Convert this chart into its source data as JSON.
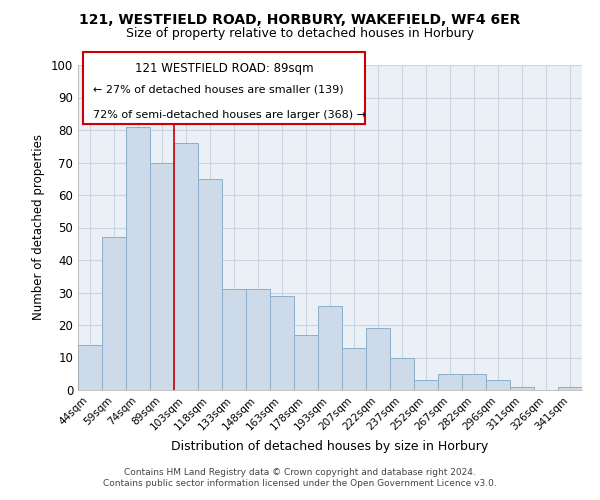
{
  "title1": "121, WESTFIELD ROAD, HORBURY, WAKEFIELD, WF4 6ER",
  "title2": "Size of property relative to detached houses in Horbury",
  "xlabel": "Distribution of detached houses by size in Horbury",
  "ylabel": "Number of detached properties",
  "bar_labels": [
    "44sqm",
    "59sqm",
    "74sqm",
    "89sqm",
    "103sqm",
    "118sqm",
    "133sqm",
    "148sqm",
    "163sqm",
    "178sqm",
    "193sqm",
    "207sqm",
    "222sqm",
    "237sqm",
    "252sqm",
    "267sqm",
    "282sqm",
    "296sqm",
    "311sqm",
    "326sqm",
    "341sqm"
  ],
  "bar_values": [
    14,
    47,
    81,
    70,
    76,
    65,
    31,
    31,
    29,
    17,
    26,
    13,
    19,
    10,
    3,
    5,
    5,
    3,
    1,
    0,
    1
  ],
  "bar_color": "#ccdaea",
  "bar_edge_color": "#8aafc8",
  "highlight_index": 3,
  "highlight_line_color": "#cc0000",
  "ylim": [
    0,
    100
  ],
  "yticks": [
    0,
    10,
    20,
    30,
    40,
    50,
    60,
    70,
    80,
    90,
    100
  ],
  "annotation_title": "121 WESTFIELD ROAD: 89sqm",
  "annotation_line1": "← 27% of detached houses are smaller (139)",
  "annotation_line2": "72% of semi-detached houses are larger (368) →",
  "annotation_box_color": "#ffffff",
  "annotation_box_edge": "#cc0000",
  "footer1": "Contains HM Land Registry data © Crown copyright and database right 2024.",
  "footer2": "Contains public sector information licensed under the Open Government Licence v3.0.",
  "grid_color": "#c8d4e0",
  "background_color": "#eaf0f6"
}
